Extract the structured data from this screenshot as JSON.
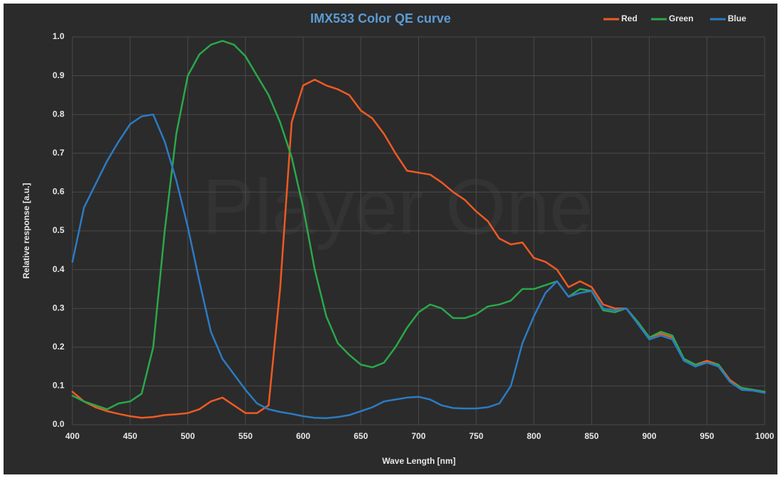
{
  "chart_data": {
    "type": "line",
    "title": "IMX533 Color QE curve",
    "xlabel": "Wave Length [nm]",
    "ylabel": "Relative response [a.u.]",
    "watermark": "Player One",
    "x": [
      400,
      410,
      420,
      430,
      440,
      450,
      460,
      470,
      480,
      490,
      500,
      510,
      520,
      530,
      540,
      550,
      560,
      570,
      580,
      590,
      600,
      610,
      620,
      630,
      640,
      650,
      660,
      670,
      680,
      690,
      700,
      710,
      720,
      730,
      740,
      750,
      760,
      770,
      780,
      790,
      800,
      810,
      820,
      830,
      840,
      850,
      860,
      870,
      880,
      890,
      900,
      910,
      920,
      930,
      940,
      950,
      960,
      970,
      980,
      990,
      1000
    ],
    "series": [
      {
        "name": "Red",
        "color": "#f05a23",
        "values": [
          0.085,
          0.06,
          0.045,
          0.035,
          0.028,
          0.022,
          0.018,
          0.02,
          0.025,
          0.027,
          0.03,
          0.04,
          0.06,
          0.07,
          0.05,
          0.03,
          0.03,
          0.05,
          0.35,
          0.78,
          0.875,
          0.89,
          0.875,
          0.865,
          0.85,
          0.81,
          0.79,
          0.75,
          0.7,
          0.655,
          0.65,
          0.645,
          0.625,
          0.6,
          0.58,
          0.55,
          0.525,
          0.48,
          0.465,
          0.47,
          0.43,
          0.42,
          0.4,
          0.355,
          0.37,
          0.355,
          0.31,
          0.3,
          0.3,
          0.265,
          0.225,
          0.235,
          0.225,
          0.17,
          0.155,
          0.165,
          0.155,
          0.115,
          0.095,
          0.09,
          0.085
        ]
      },
      {
        "name": "Green",
        "color": "#2aa84a",
        "values": [
          0.075,
          0.06,
          0.05,
          0.04,
          0.055,
          0.06,
          0.08,
          0.2,
          0.5,
          0.75,
          0.9,
          0.955,
          0.98,
          0.99,
          0.98,
          0.95,
          0.9,
          0.85,
          0.78,
          0.69,
          0.56,
          0.4,
          0.28,
          0.21,
          0.18,
          0.155,
          0.148,
          0.16,
          0.2,
          0.25,
          0.29,
          0.31,
          0.3,
          0.275,
          0.275,
          0.285,
          0.305,
          0.31,
          0.32,
          0.35,
          0.35,
          0.36,
          0.37,
          0.33,
          0.35,
          0.345,
          0.295,
          0.29,
          0.3,
          0.265,
          0.225,
          0.24,
          0.23,
          0.17,
          0.155,
          0.16,
          0.155,
          0.11,
          0.095,
          0.09,
          0.085
        ]
      },
      {
        "name": "Blue",
        "color": "#2c7bc4",
        "values": [
          0.42,
          0.56,
          0.62,
          0.68,
          0.73,
          0.775,
          0.795,
          0.8,
          0.73,
          0.63,
          0.51,
          0.37,
          0.24,
          0.17,
          0.13,
          0.09,
          0.055,
          0.04,
          0.033,
          0.028,
          0.022,
          0.018,
          0.017,
          0.02,
          0.025,
          0.035,
          0.045,
          0.06,
          0.065,
          0.07,
          0.072,
          0.065,
          0.05,
          0.043,
          0.042,
          0.042,
          0.045,
          0.055,
          0.1,
          0.21,
          0.28,
          0.34,
          0.37,
          0.33,
          0.34,
          0.345,
          0.3,
          0.295,
          0.3,
          0.26,
          0.22,
          0.23,
          0.22,
          0.165,
          0.15,
          0.16,
          0.15,
          0.11,
          0.09,
          0.088,
          0.082
        ]
      }
    ],
    "xlim": [
      400,
      1000
    ],
    "xticks": [
      400,
      450,
      500,
      550,
      600,
      650,
      700,
      750,
      800,
      850,
      900,
      950,
      1000
    ],
    "ylim": [
      0,
      1
    ],
    "yticks": [
      {
        "value": 0,
        "label": "0.0"
      },
      0.1,
      0.2,
      0.3,
      0.4,
      0.5,
      0.6,
      0.7,
      0.8,
      0.9,
      {
        "value": 1,
        "label": "1.0"
      }
    ],
    "grid": true,
    "legend": "top-right"
  }
}
